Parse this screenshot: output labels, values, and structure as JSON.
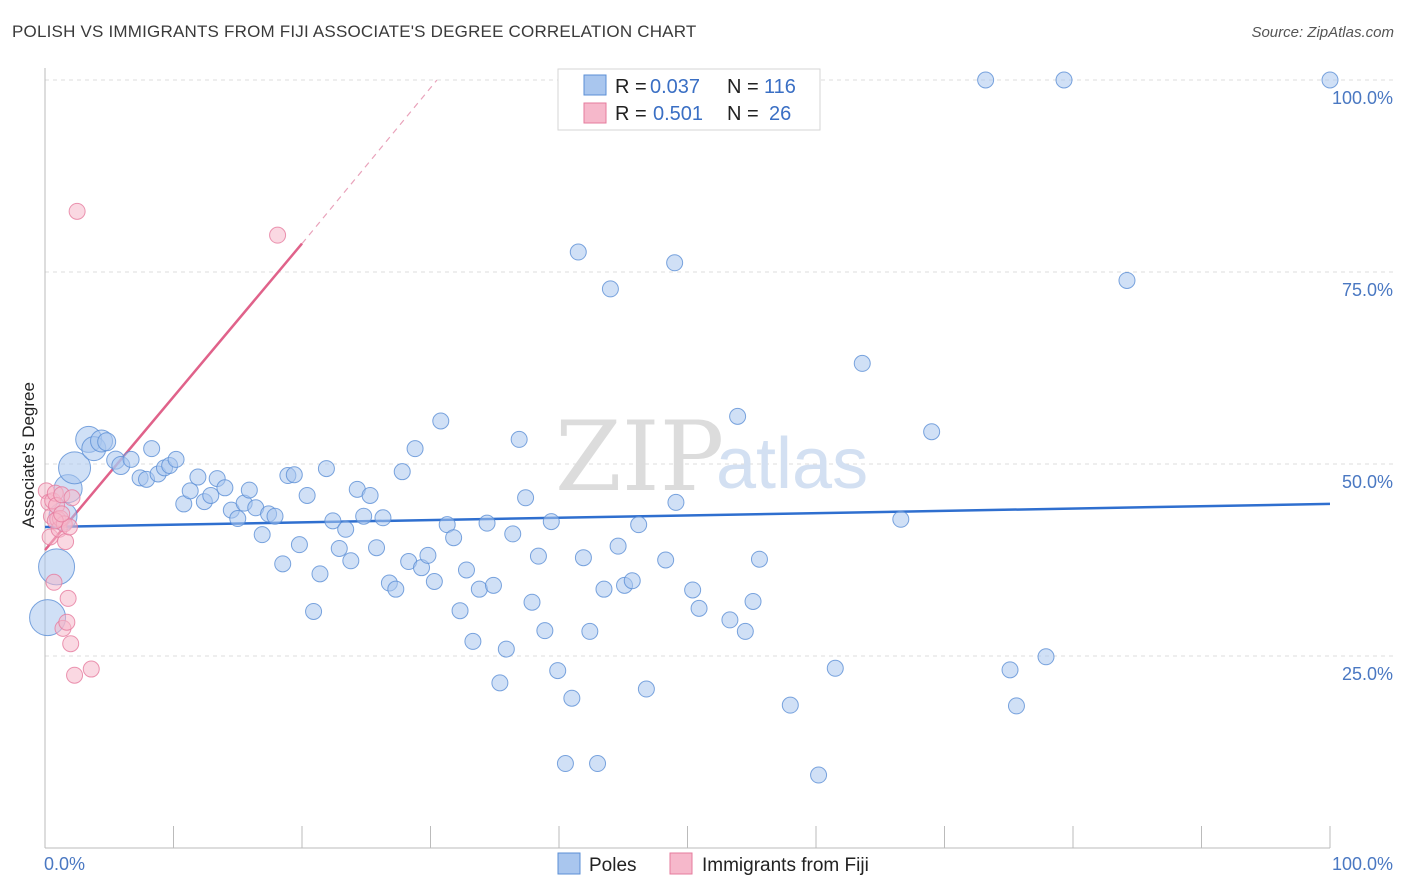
{
  "header": {
    "title": "POLISH VS IMMIGRANTS FROM FIJI ASSOCIATE'S DEGREE CORRELATION CHART",
    "source": "Source: ZipAtlas.com"
  },
  "watermark": {
    "part1": "ZIP",
    "part2": "atlas"
  },
  "colors": {
    "poles_fill": "#a9c6ee",
    "poles_stroke": "#5b8fd6",
    "poles_line": "#2f6fcf",
    "fiji_fill": "#f6b8cb",
    "fiji_stroke": "#e67b9d",
    "fiji_line": "#e0628a",
    "grid": "#dcdcdc",
    "tick_text": "#4a78c2"
  },
  "legend": {
    "rows": [
      {
        "r_label": "R =",
        "r_value": "0.037",
        "n_label": "N =",
        "n_value": "116"
      },
      {
        "r_label": "R =",
        "r_value": "0.501",
        "n_label": "N =",
        "n_value": "26"
      }
    ]
  },
  "chart_data": {
    "type": "scatter",
    "title": "POLISH VS IMMIGRANTS FROM FIJI ASSOCIATE'S DEGREE CORRELATION CHART",
    "xlabel": "",
    "ylabel": "Associate's Degree",
    "xlim": [
      0,
      100
    ],
    "ylim": [
      0,
      103
    ],
    "x_tick_labels": [
      "0.0%",
      "100.0%"
    ],
    "y_ticks": [
      25,
      50,
      75,
      100
    ],
    "y_tick_labels": [
      "25.0%",
      "50.0%",
      "75.0%",
      "100.0%"
    ],
    "grid": true,
    "legend_position": "bottom",
    "series": [
      {
        "name": "Poles",
        "r": 0.037,
        "n": 116,
        "trend": {
          "x": [
            0,
            100
          ],
          "y": [
            41.8,
            44.8
          ]
        },
        "points": [
          {
            "x": 0.2,
            "y": 30.0,
            "s": 18
          },
          {
            "x": 0.9,
            "y": 36.6,
            "s": 18
          },
          {
            "x": 1.4,
            "y": 43.2,
            "s": 14
          },
          {
            "x": 1.8,
            "y": 46.8,
            "s": 14
          },
          {
            "x": 2.3,
            "y": 49.5,
            "s": 16
          },
          {
            "x": 3.4,
            "y": 53.2,
            "s": 13
          },
          {
            "x": 3.8,
            "y": 52.0,
            "s": 12
          },
          {
            "x": 4.4,
            "y": 53.0,
            "s": 11
          },
          {
            "x": 4.8,
            "y": 52.9,
            "s": 9
          },
          {
            "x": 5.5,
            "y": 50.5,
            "s": 9
          },
          {
            "x": 5.9,
            "y": 49.8,
            "s": 9
          },
          {
            "x": 6.7,
            "y": 50.6,
            "s": 8
          },
          {
            "x": 7.4,
            "y": 48.2,
            "s": 8
          },
          {
            "x": 7.9,
            "y": 48.0,
            "s": 8
          },
          {
            "x": 8.3,
            "y": 52.0,
            "s": 8
          },
          {
            "x": 8.8,
            "y": 48.7,
            "s": 8
          },
          {
            "x": 9.3,
            "y": 49.5,
            "s": 8
          },
          {
            "x": 9.7,
            "y": 49.8,
            "s": 8
          },
          {
            "x": 10.2,
            "y": 50.6,
            "s": 8
          },
          {
            "x": 10.8,
            "y": 44.8,
            "s": 8
          },
          {
            "x": 11.3,
            "y": 46.5,
            "s": 8
          },
          {
            "x": 11.9,
            "y": 48.3,
            "s": 8
          },
          {
            "x": 12.4,
            "y": 45.1,
            "s": 8
          },
          {
            "x": 12.9,
            "y": 45.9,
            "s": 8
          },
          {
            "x": 13.4,
            "y": 48.1,
            "s": 8
          },
          {
            "x": 14.0,
            "y": 46.9,
            "s": 8
          },
          {
            "x": 14.5,
            "y": 44.0,
            "s": 8
          },
          {
            "x": 15.0,
            "y": 42.9,
            "s": 8
          },
          {
            "x": 15.5,
            "y": 44.9,
            "s": 8
          },
          {
            "x": 15.9,
            "y": 46.6,
            "s": 8
          },
          {
            "x": 16.4,
            "y": 44.3,
            "s": 8
          },
          {
            "x": 16.9,
            "y": 40.8,
            "s": 8
          },
          {
            "x": 17.4,
            "y": 43.5,
            "s": 8
          },
          {
            "x": 17.9,
            "y": 43.2,
            "s": 8
          },
          {
            "x": 18.5,
            "y": 37.0,
            "s": 8
          },
          {
            "x": 18.9,
            "y": 48.5,
            "s": 8
          },
          {
            "x": 19.4,
            "y": 48.6,
            "s": 8
          },
          {
            "x": 19.8,
            "y": 39.5,
            "s": 8
          },
          {
            "x": 20.4,
            "y": 45.9,
            "s": 8
          },
          {
            "x": 20.9,
            "y": 30.8,
            "s": 8
          },
          {
            "x": 21.4,
            "y": 35.7,
            "s": 8
          },
          {
            "x": 21.9,
            "y": 49.4,
            "s": 8
          },
          {
            "x": 22.4,
            "y": 42.6,
            "s": 8
          },
          {
            "x": 22.9,
            "y": 39.0,
            "s": 8
          },
          {
            "x": 23.4,
            "y": 41.5,
            "s": 8
          },
          {
            "x": 23.8,
            "y": 37.4,
            "s": 8
          },
          {
            "x": 24.3,
            "y": 46.7,
            "s": 8
          },
          {
            "x": 24.8,
            "y": 43.2,
            "s": 8
          },
          {
            "x": 25.3,
            "y": 45.9,
            "s": 8
          },
          {
            "x": 25.8,
            "y": 39.1,
            "s": 8
          },
          {
            "x": 26.3,
            "y": 43.0,
            "s": 8
          },
          {
            "x": 26.8,
            "y": 34.5,
            "s": 8
          },
          {
            "x": 27.3,
            "y": 33.7,
            "s": 8
          },
          {
            "x": 27.8,
            "y": 49.0,
            "s": 8
          },
          {
            "x": 28.3,
            "y": 37.3,
            "s": 8
          },
          {
            "x": 28.8,
            "y": 52.0,
            "s": 8
          },
          {
            "x": 29.3,
            "y": 36.5,
            "s": 8
          },
          {
            "x": 29.8,
            "y": 38.1,
            "s": 8
          },
          {
            "x": 30.3,
            "y": 34.7,
            "s": 8
          },
          {
            "x": 30.8,
            "y": 55.6,
            "s": 8
          },
          {
            "x": 31.3,
            "y": 42.1,
            "s": 8
          },
          {
            "x": 31.8,
            "y": 40.4,
            "s": 8
          },
          {
            "x": 32.3,
            "y": 30.9,
            "s": 8
          },
          {
            "x": 32.8,
            "y": 36.2,
            "s": 8
          },
          {
            "x": 33.3,
            "y": 26.9,
            "s": 8
          },
          {
            "x": 33.8,
            "y": 33.7,
            "s": 8
          },
          {
            "x": 34.4,
            "y": 42.3,
            "s": 8
          },
          {
            "x": 34.9,
            "y": 34.2,
            "s": 8
          },
          {
            "x": 35.4,
            "y": 21.5,
            "s": 8
          },
          {
            "x": 35.9,
            "y": 25.9,
            "s": 8
          },
          {
            "x": 36.4,
            "y": 40.9,
            "s": 8
          },
          {
            "x": 36.9,
            "y": 53.2,
            "s": 8
          },
          {
            "x": 37.4,
            "y": 45.6,
            "s": 8
          },
          {
            "x": 37.9,
            "y": 32.0,
            "s": 8
          },
          {
            "x": 38.4,
            "y": 38.0,
            "s": 8
          },
          {
            "x": 38.9,
            "y": 28.3,
            "s": 8
          },
          {
            "x": 39.4,
            "y": 42.5,
            "s": 8
          },
          {
            "x": 39.9,
            "y": 23.1,
            "s": 8
          },
          {
            "x": 40.5,
            "y": 11.0,
            "s": 8
          },
          {
            "x": 41.0,
            "y": 19.5,
            "s": 8
          },
          {
            "x": 41.5,
            "y": 77.6,
            "s": 8
          },
          {
            "x": 41.9,
            "y": 37.8,
            "s": 8
          },
          {
            "x": 42.4,
            "y": 28.2,
            "s": 8
          },
          {
            "x": 43.0,
            "y": 11.0,
            "s": 8
          },
          {
            "x": 43.5,
            "y": 33.7,
            "s": 8
          },
          {
            "x": 44.0,
            "y": 72.8,
            "s": 8
          },
          {
            "x": 44.6,
            "y": 39.3,
            "s": 8
          },
          {
            "x": 45.1,
            "y": 34.2,
            "s": 8
          },
          {
            "x": 45.7,
            "y": 34.8,
            "s": 8
          },
          {
            "x": 46.2,
            "y": 42.1,
            "s": 8
          },
          {
            "x": 46.8,
            "y": 20.7,
            "s": 8
          },
          {
            "x": 48.3,
            "y": 37.5,
            "s": 8
          },
          {
            "x": 49.0,
            "y": 76.2,
            "s": 8
          },
          {
            "x": 49.1,
            "y": 45.0,
            "s": 8
          },
          {
            "x": 50.4,
            "y": 33.6,
            "s": 8
          },
          {
            "x": 50.9,
            "y": 31.2,
            "s": 8
          },
          {
            "x": 53.3,
            "y": 29.7,
            "s": 8
          },
          {
            "x": 53.9,
            "y": 56.2,
            "s": 8
          },
          {
            "x": 54.5,
            "y": 28.2,
            "s": 8
          },
          {
            "x": 55.1,
            "y": 32.1,
            "s": 8
          },
          {
            "x": 55.6,
            "y": 37.6,
            "s": 8
          },
          {
            "x": 58.0,
            "y": 18.6,
            "s": 8
          },
          {
            "x": 60.2,
            "y": 9.5,
            "s": 8
          },
          {
            "x": 61.5,
            "y": 23.4,
            "s": 8
          },
          {
            "x": 63.6,
            "y": 63.1,
            "s": 8
          },
          {
            "x": 66.6,
            "y": 42.8,
            "s": 8
          },
          {
            "x": 69.0,
            "y": 54.2,
            "s": 8
          },
          {
            "x": 73.2,
            "y": 100.0,
            "s": 8
          },
          {
            "x": 75.1,
            "y": 23.2,
            "s": 8
          },
          {
            "x": 75.6,
            "y": 18.5,
            "s": 8
          },
          {
            "x": 77.9,
            "y": 24.9,
            "s": 8
          },
          {
            "x": 79.3,
            "y": 100.0,
            "s": 8
          },
          {
            "x": 84.2,
            "y": 73.9,
            "s": 8
          },
          {
            "x": 100.0,
            "y": 100.0,
            "s": 8
          }
        ]
      },
      {
        "name": "Immigrants from Fiji",
        "r": 0.501,
        "n": 26,
        "trend": {
          "x": [
            0,
            20
          ],
          "y": [
            38.8,
            78.7
          ],
          "dashed_to": [
            30.5,
            100.0
          ]
        },
        "points": [
          {
            "x": 0.1,
            "y": 46.5,
            "s": 8
          },
          {
            "x": 0.3,
            "y": 45.0,
            "s": 8
          },
          {
            "x": 0.4,
            "y": 40.5,
            "s": 8
          },
          {
            "x": 0.5,
            "y": 43.2,
            "s": 8
          },
          {
            "x": 0.6,
            "y": 45.2,
            "s": 8
          },
          {
            "x": 0.7,
            "y": 34.6,
            "s": 8
          },
          {
            "x": 0.8,
            "y": 46.2,
            "s": 8
          },
          {
            "x": 0.9,
            "y": 44.6,
            "s": 8
          },
          {
            "x": 1.0,
            "y": 42.8,
            "s": 8
          },
          {
            "x": 1.1,
            "y": 41.5,
            "s": 8
          },
          {
            "x": 1.2,
            "y": 42.9,
            "s": 8
          },
          {
            "x": 1.3,
            "y": 46.0,
            "s": 8
          },
          {
            "x": 1.4,
            "y": 28.6,
            "s": 8
          },
          {
            "x": 1.5,
            "y": 42.2,
            "s": 8
          },
          {
            "x": 1.6,
            "y": 39.9,
            "s": 8
          },
          {
            "x": 1.7,
            "y": 29.4,
            "s": 8
          },
          {
            "x": 1.8,
            "y": 32.5,
            "s": 8
          },
          {
            "x": 1.9,
            "y": 41.8,
            "s": 8
          },
          {
            "x": 2.0,
            "y": 26.6,
            "s": 8
          },
          {
            "x": 2.1,
            "y": 45.6,
            "s": 8
          },
          {
            "x": 2.3,
            "y": 22.5,
            "s": 8
          },
          {
            "x": 2.5,
            "y": 82.9,
            "s": 8
          },
          {
            "x": 3.6,
            "y": 23.3,
            "s": 8
          },
          {
            "x": 18.1,
            "y": 79.8,
            "s": 8
          },
          {
            "x": 0.8,
            "y": 42.6,
            "s": 8
          },
          {
            "x": 1.3,
            "y": 43.5,
            "s": 8
          }
        ]
      }
    ]
  },
  "bottom_legend": {
    "items": [
      "Poles",
      "Immigrants from Fiji"
    ]
  }
}
